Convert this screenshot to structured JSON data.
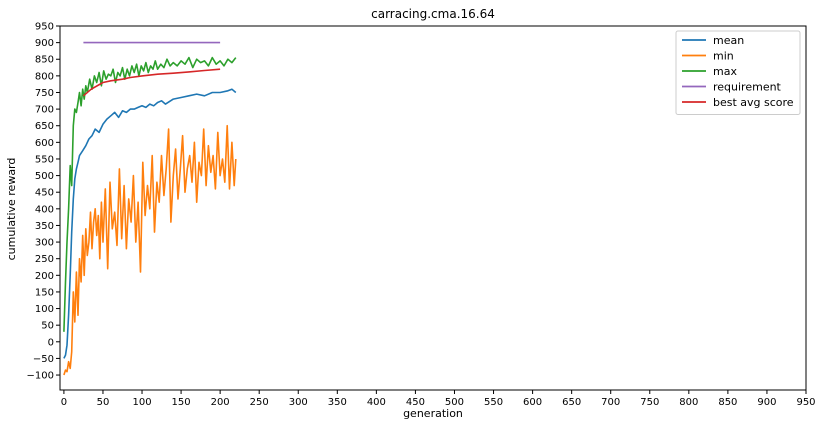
{
  "chart_data": {
    "type": "line",
    "title": "carracing.cma.16.64",
    "xlabel": "generation",
    "ylabel": "cumulative reward",
    "xlim": [
      -5,
      950
    ],
    "ylim": [
      -145,
      950
    ],
    "xticks": [
      0,
      50,
      100,
      150,
      200,
      250,
      300,
      350,
      400,
      450,
      500,
      550,
      600,
      650,
      700,
      750,
      800,
      850,
      900,
      950
    ],
    "yticks": [
      -100,
      -50,
      0,
      50,
      100,
      150,
      200,
      250,
      300,
      350,
      400,
      450,
      500,
      550,
      600,
      650,
      700,
      750,
      800,
      850,
      900,
      950
    ],
    "legend_position": "top-right",
    "grid": false,
    "series": [
      {
        "name": "mean",
        "color": "#1f77b4",
        "x": [
          0,
          2,
          4,
          6,
          8,
          10,
          12,
          14,
          16,
          18,
          20,
          24,
          28,
          32,
          36,
          40,
          45,
          50,
          55,
          60,
          65,
          70,
          75,
          80,
          85,
          90,
          95,
          100,
          105,
          110,
          115,
          120,
          125,
          130,
          140,
          150,
          160,
          170,
          180,
          190,
          200,
          210,
          215,
          220
        ],
        "values": [
          -50,
          -40,
          -10,
          80,
          200,
          330,
          430,
          490,
          520,
          540,
          560,
          575,
          590,
          610,
          620,
          640,
          630,
          655,
          670,
          680,
          690,
          675,
          695,
          690,
          700,
          700,
          705,
          710,
          705,
          715,
          710,
          720,
          725,
          715,
          730,
          735,
          740,
          745,
          740,
          750,
          750,
          755,
          760,
          750
        ]
      },
      {
        "name": "min",
        "color": "#ff7f0e",
        "x": [
          0,
          2,
          4,
          6,
          8,
          10,
          12,
          14,
          16,
          18,
          20,
          22,
          24,
          26,
          28,
          30,
          32,
          34,
          36,
          38,
          40,
          42,
          44,
          46,
          48,
          50,
          53,
          56,
          59,
          62,
          65,
          68,
          71,
          74,
          77,
          80,
          83,
          86,
          89,
          92,
          95,
          98,
          101,
          104,
          107,
          110,
          113,
          116,
          119,
          122,
          125,
          128,
          131,
          134,
          137,
          140,
          143,
          146,
          149,
          152,
          155,
          158,
          161,
          164,
          167,
          170,
          173,
          176,
          179,
          182,
          185,
          188,
          191,
          194,
          197,
          200,
          203,
          206,
          209,
          212,
          215,
          218,
          220
        ],
        "values": [
          -100,
          -85,
          -90,
          -60,
          -80,
          -30,
          150,
          60,
          210,
          80,
          250,
          180,
          320,
          200,
          340,
          260,
          300,
          390,
          280,
          360,
          400,
          320,
          380,
          250,
          420,
          300,
          460,
          220,
          480,
          340,
          390,
          290,
          520,
          310,
          470,
          280,
          430,
          360,
          500,
          300,
          420,
          210,
          540,
          380,
          470,
          400,
          560,
          330,
          480,
          420,
          560,
          440,
          520,
          640,
          360,
          500,
          580,
          430,
          520,
          620,
          450,
          520,
          560,
          480,
          600,
          420,
          540,
          500,
          640,
          470,
          590,
          510,
          560,
          460,
          630,
          500,
          550,
          480,
          650,
          460,
          600,
          470,
          550
        ]
      },
      {
        "name": "max",
        "color": "#2ca02c",
        "x": [
          0,
          2,
          4,
          6,
          8,
          10,
          12,
          14,
          16,
          18,
          20,
          22,
          24,
          26,
          28,
          30,
          33,
          36,
          39,
          42,
          45,
          48,
          51,
          54,
          57,
          60,
          63,
          66,
          69,
          72,
          75,
          78,
          81,
          84,
          87,
          90,
          93,
          96,
          99,
          102,
          105,
          108,
          111,
          114,
          117,
          120,
          124,
          128,
          132,
          136,
          140,
          145,
          150,
          155,
          160,
          165,
          170,
          175,
          180,
          185,
          190,
          195,
          200,
          205,
          210,
          215,
          220
        ],
        "values": [
          30,
          180,
          300,
          400,
          530,
          470,
          650,
          700,
          690,
          720,
          750,
          710,
          760,
          730,
          770,
          750,
          790,
          760,
          800,
          780,
          810,
          770,
          815,
          790,
          805,
          800,
          820,
          780,
          810,
          800,
          825,
          790,
          820,
          800,
          830,
          810,
          835,
          800,
          830,
          815,
          840,
          810,
          830,
          820,
          845,
          820,
          835,
          825,
          850,
          830,
          840,
          830,
          845,
          835,
          855,
          825,
          850,
          840,
          845,
          830,
          855,
          835,
          845,
          830,
          850,
          840,
          855
        ]
      },
      {
        "name": "requirement",
        "color": "#9467bd",
        "x": [
          25,
          200
        ],
        "values": [
          900,
          900
        ]
      },
      {
        "name": "best avg score",
        "color": "#d62728",
        "x": [
          25,
          35,
          50,
          60,
          75,
          85,
          100,
          120,
          140,
          160,
          180,
          200
        ],
        "values": [
          740,
          760,
          780,
          785,
          790,
          795,
          800,
          805,
          808,
          812,
          816,
          820
        ]
      }
    ]
  }
}
